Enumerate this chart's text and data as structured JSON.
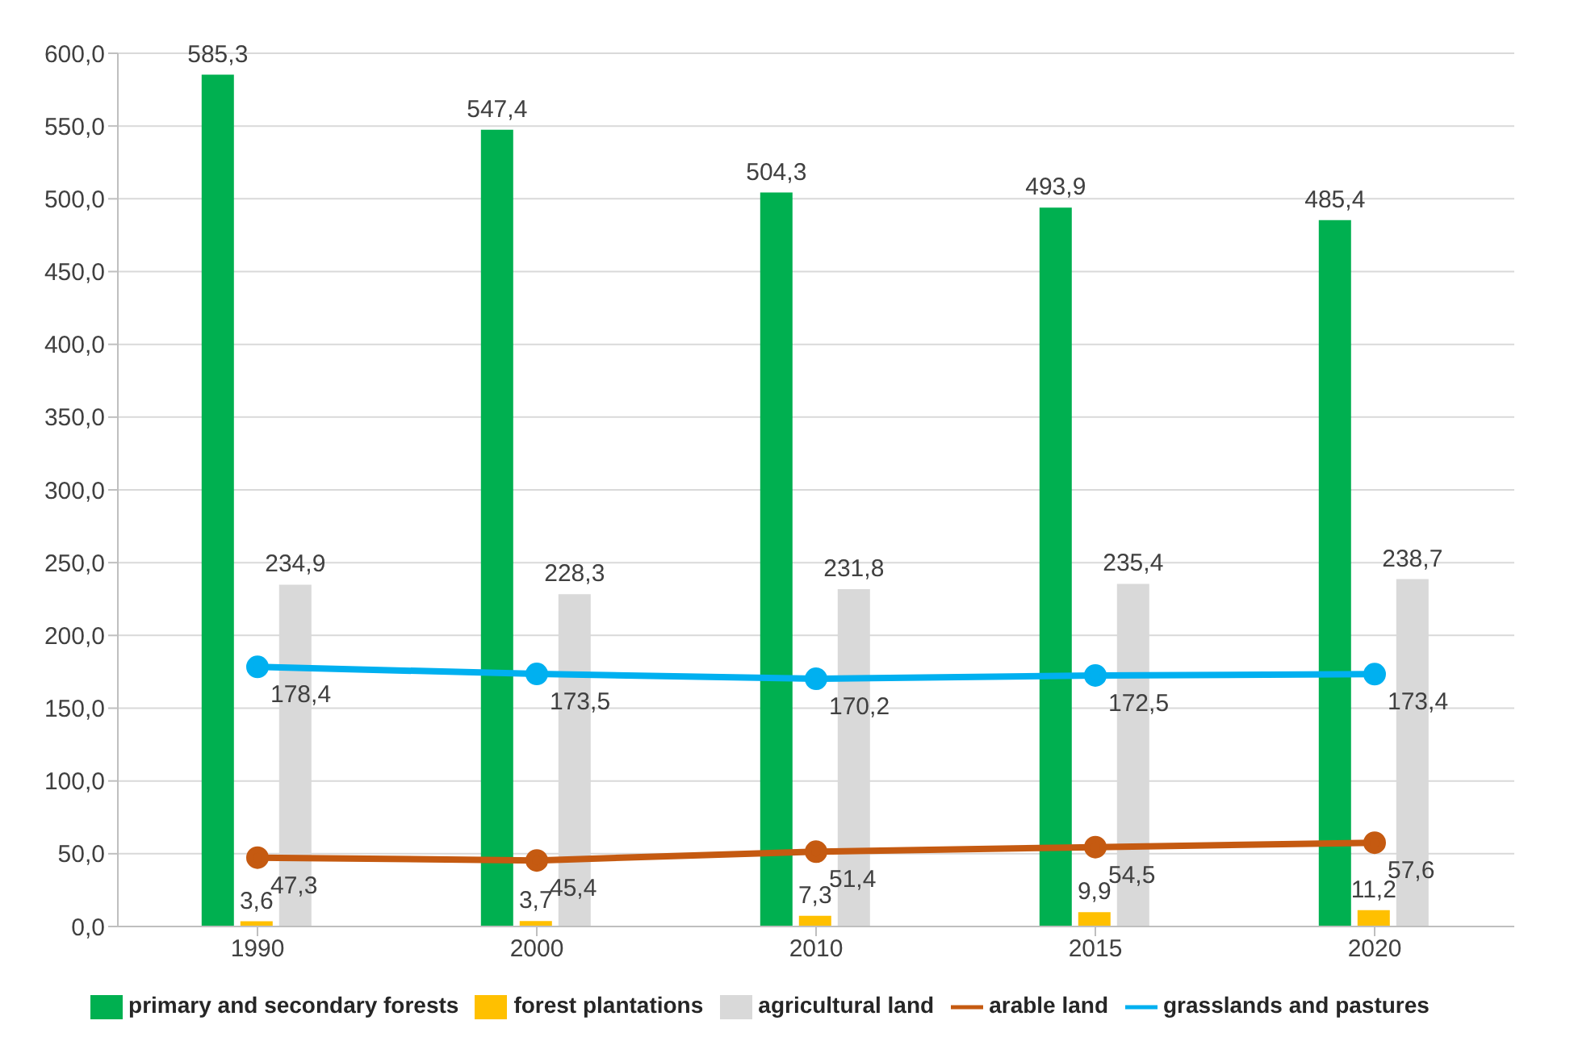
{
  "chart_data": {
    "type": "bar",
    "categories": [
      "1990",
      "2000",
      "2010",
      "2015",
      "2020"
    ],
    "series": [
      {
        "name": "primary and secondary forests",
        "color": "#00b050",
        "values": [
          585.3,
          547.4,
          504.3,
          493.9,
          485.4
        ],
        "value_labels": [
          "585,3",
          "547,4",
          "504,3",
          "493,9",
          "485,4"
        ]
      },
      {
        "name": "forest plantations",
        "color": "#ffc000",
        "values": [
          3.6,
          3.7,
          7.3,
          9.9,
          11.2
        ],
        "value_labels": [
          "3,6",
          "3,7",
          "7,3",
          "9,9",
          "11,2"
        ]
      },
      {
        "name": "agricultural land",
        "color": "#d9d9d9",
        "values": [
          234.9,
          228.3,
          231.8,
          235.4,
          238.7
        ],
        "value_labels": [
          "234,9",
          "228,3",
          "231,8",
          "235,4",
          "238,7"
        ]
      },
      {
        "name": "arable land",
        "type": "line",
        "color": "#c55a11",
        "values": [
          47.3,
          45.4,
          51.4,
          54.5,
          57.6
        ],
        "value_labels": [
          "47,3",
          "45,4",
          "51,4",
          "54,5",
          "57,6"
        ]
      },
      {
        "name": "grasslands and pastures",
        "type": "line",
        "color": "#00b0f0",
        "values": [
          178.4,
          173.5,
          170.2,
          172.5,
          173.4
        ],
        "value_labels": [
          "178,4",
          "173,5",
          "170,2",
          "172,5",
          "173,4"
        ]
      }
    ],
    "ylim": [
      0,
      600
    ],
    "yticks": [
      {
        "value": 0,
        "label": "0,0"
      },
      {
        "value": 50,
        "label": "50,0"
      },
      {
        "value": 100,
        "label": "100,0"
      },
      {
        "value": 150,
        "label": "150,0"
      },
      {
        "value": 200,
        "label": "200,0"
      },
      {
        "value": 250,
        "label": "250,0"
      },
      {
        "value": 300,
        "label": "300,0"
      },
      {
        "value": 350,
        "label": "350,0"
      },
      {
        "value": 400,
        "label": "400,0"
      },
      {
        "value": 450,
        "label": "450,0"
      },
      {
        "value": 500,
        "label": "500,0"
      },
      {
        "value": 550,
        "label": "550,0"
      },
      {
        "value": 600,
        "label": "600,0"
      }
    ],
    "grid": "y",
    "legend": "bottom",
    "marker": "circle"
  }
}
